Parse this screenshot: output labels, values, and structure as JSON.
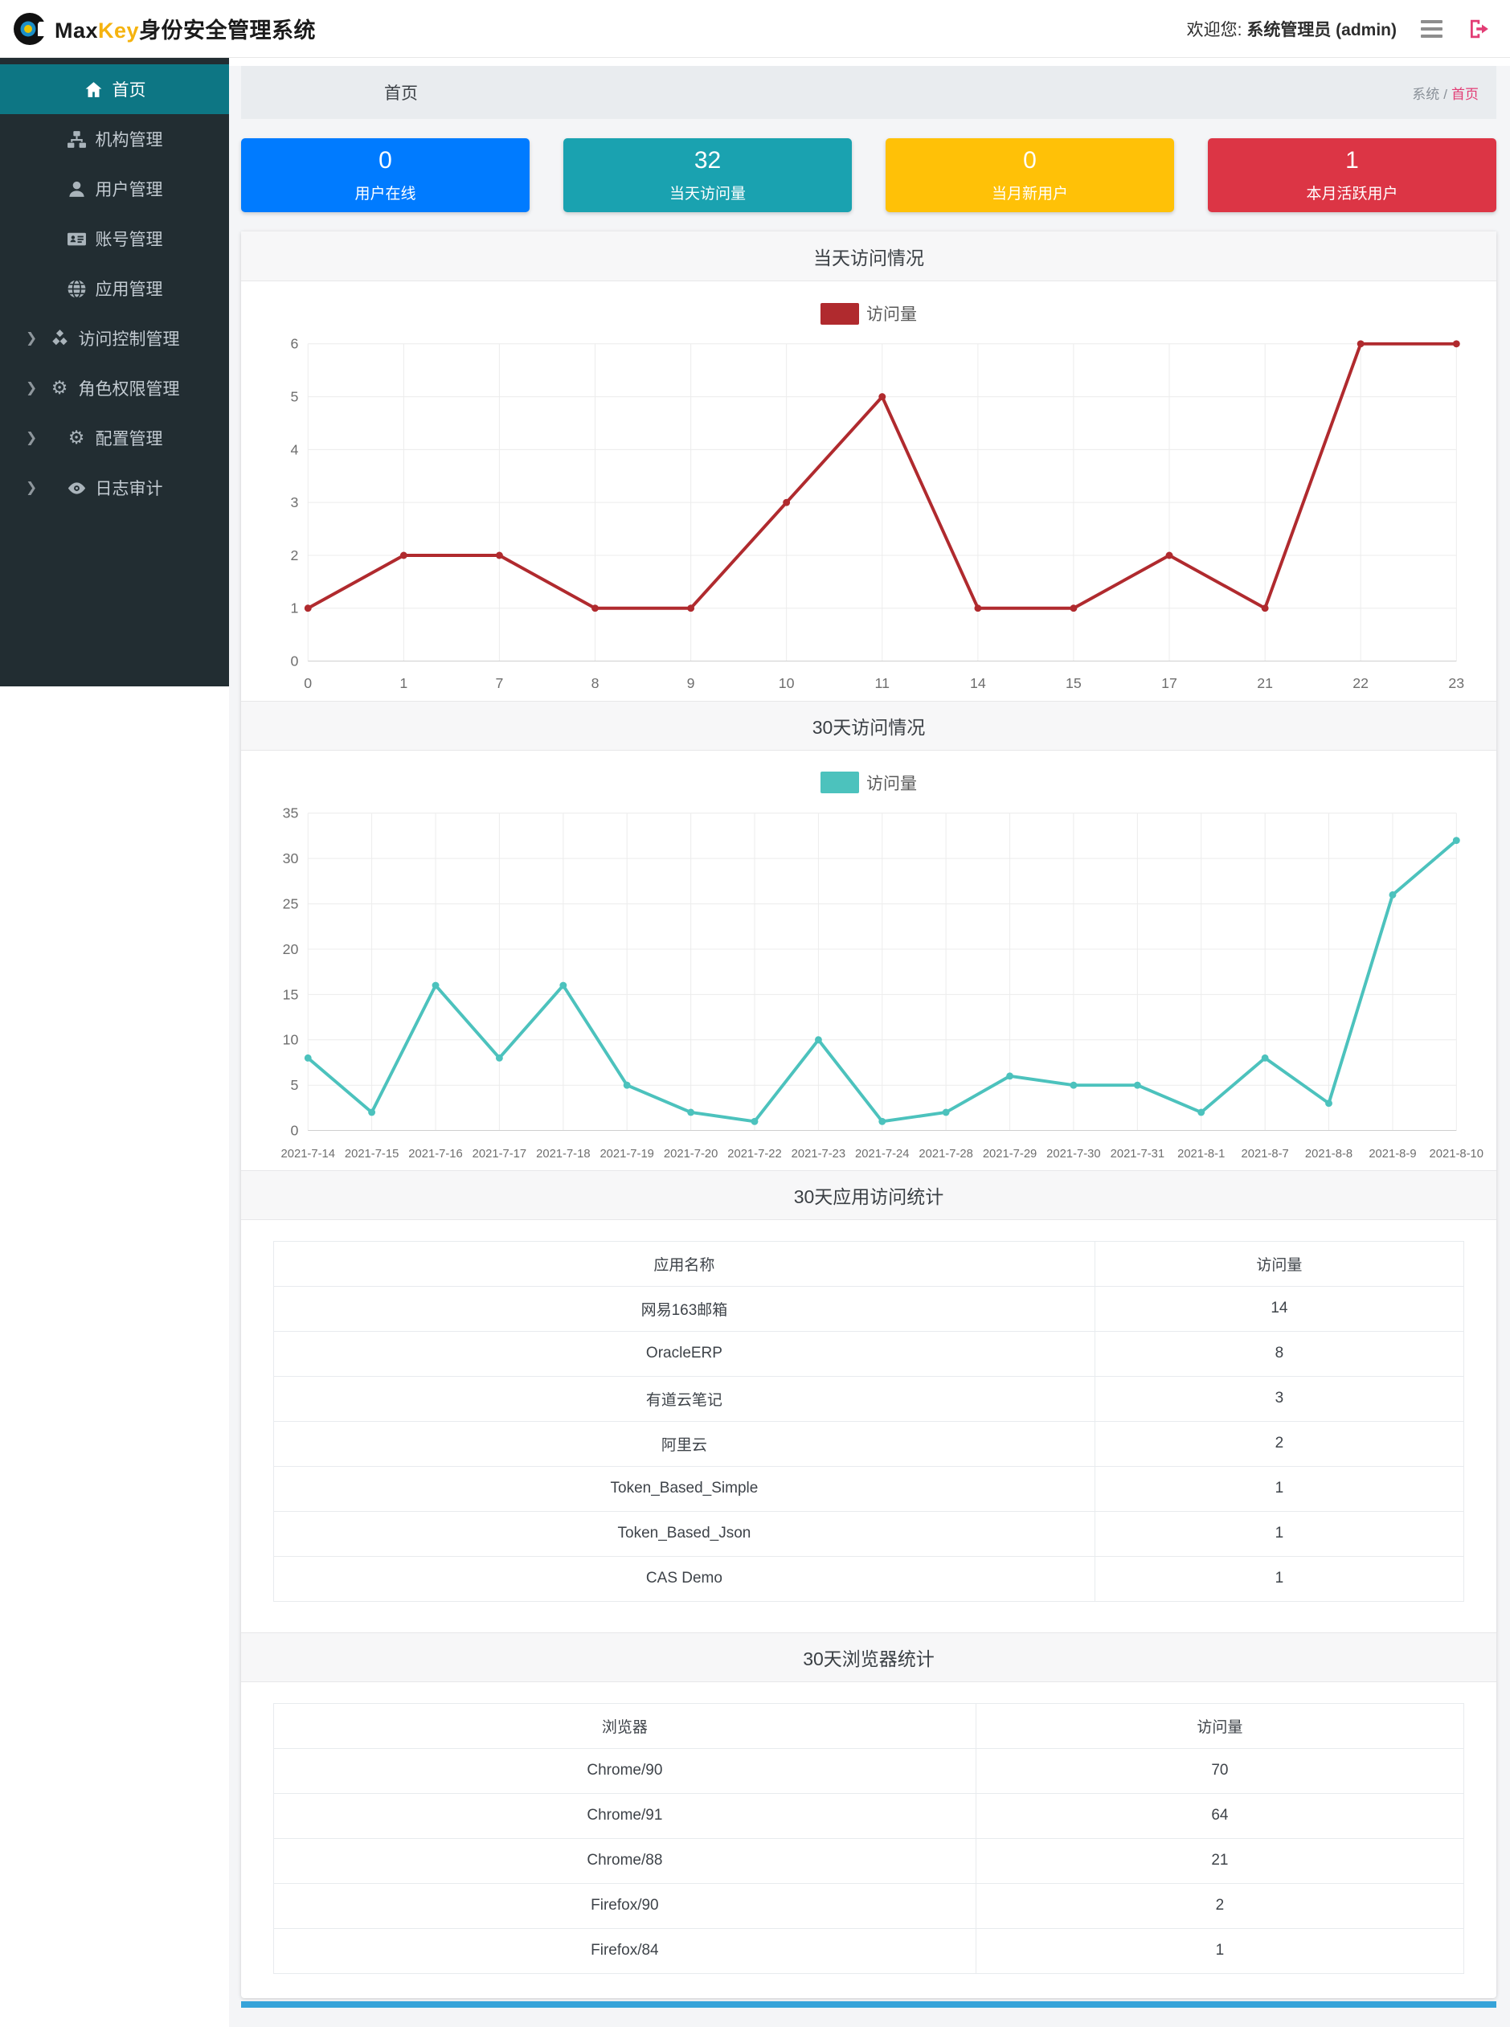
{
  "theme": {
    "sidebar_bg": "#222d32",
    "sidebar_active_bg": "#0d7684",
    "brand_key_color": "#f5b30f",
    "link_pink": "#e23c74",
    "page_bg": "#f4f5f7",
    "band_bg": "#f7f7f8",
    "footer_bar": "#36a3d9"
  },
  "header": {
    "brand_max": "Max",
    "brand_key": "Key",
    "brand_suffix": "身份安全管理系统",
    "welcome_prefix": "欢迎您:",
    "welcome_user": "系统管理员 (admin)"
  },
  "sidebar": {
    "items": [
      {
        "key": "home",
        "label": "首页",
        "icon": "home",
        "active": true,
        "expandable": false
      },
      {
        "key": "org-mgmt",
        "label": "机构管理",
        "icon": "sitemap",
        "active": false,
        "expandable": false
      },
      {
        "key": "user-mgmt",
        "label": "用户管理",
        "icon": "user",
        "active": false,
        "expandable": false
      },
      {
        "key": "account-mgmt",
        "label": "账号管理",
        "icon": "idcard",
        "active": false,
        "expandable": false
      },
      {
        "key": "app-mgmt",
        "label": "应用管理",
        "icon": "globe",
        "active": false,
        "expandable": false
      },
      {
        "key": "access-ctrl",
        "label": "访问控制管理",
        "icon": "cubes",
        "active": false,
        "expandable": true
      },
      {
        "key": "role-perm",
        "label": "角色权限管理",
        "icon": "gears",
        "active": false,
        "expandable": true
      },
      {
        "key": "config-mgmt",
        "label": "配置管理",
        "icon": "gears",
        "active": false,
        "expandable": true
      },
      {
        "key": "log-audit",
        "label": "日志审计",
        "icon": "eye",
        "active": false,
        "expandable": true
      }
    ]
  },
  "breadcrumb": {
    "page_title": "首页",
    "trail_root": "系统",
    "trail_sep": "/",
    "trail_current": "首页"
  },
  "stat_cards": [
    {
      "key": "users-online",
      "value": "0",
      "label": "用户在线",
      "color": "#007bff"
    },
    {
      "key": "today-visits",
      "value": "32",
      "label": "当天访问量",
      "color": "#1aa2b0"
    },
    {
      "key": "month-new-users",
      "value": "0",
      "label": "当月新用户",
      "color": "#ffc107"
    },
    {
      "key": "month-active-users",
      "value": "1",
      "label": "本月活跃用户",
      "color": "#dc3545"
    }
  ],
  "chart_data": [
    {
      "type": "line",
      "title": "当天访问情况",
      "legend": "访问量",
      "color": "#b02a2e",
      "categories": [
        "0",
        "1",
        "7",
        "8",
        "9",
        "10",
        "11",
        "14",
        "15",
        "17",
        "21",
        "22",
        "23"
      ],
      "values": [
        1,
        2,
        2,
        1,
        1,
        3,
        5,
        1,
        1,
        2,
        1,
        6,
        6
      ],
      "xlabel": "",
      "ylabel": "",
      "ylim": [
        0,
        6
      ],
      "ytick": 1,
      "yticks": [
        0,
        1,
        2,
        3,
        4,
        5,
        6
      ],
      "grid": true,
      "legend_position": "top",
      "x_font": 18
    },
    {
      "type": "line",
      "title": "30天访问情况",
      "legend": "访问量",
      "color": "#4cc2bd",
      "categories": [
        "2021-7-14",
        "2021-7-15",
        "2021-7-16",
        "2021-7-17",
        "2021-7-18",
        "2021-7-19",
        "2021-7-20",
        "2021-7-22",
        "2021-7-23",
        "2021-7-24",
        "2021-7-28",
        "2021-7-29",
        "2021-7-30",
        "2021-7-31",
        "2021-8-1",
        "2021-8-7",
        "2021-8-8",
        "2021-8-9",
        "2021-8-10"
      ],
      "values": [
        8,
        2,
        16,
        8,
        16,
        5,
        2,
        1,
        10,
        1,
        2,
        6,
        5,
        5,
        2,
        8,
        3,
        26,
        32
      ],
      "xlabel": "",
      "ylabel": "",
      "ylim": [
        0,
        35
      ],
      "ytick": 5,
      "yticks": [
        0,
        5,
        10,
        15,
        20,
        25,
        30,
        35
      ],
      "grid": true,
      "legend_position": "top",
      "x_font": 15
    }
  ],
  "app_table": {
    "title": "30天应用访问统计",
    "headers": [
      "应用名称",
      "访问量"
    ],
    "rows": [
      [
        "网易163邮箱",
        "14"
      ],
      [
        "OracleERP",
        "8"
      ],
      [
        "有道云笔记",
        "3"
      ],
      [
        "阿里云",
        "2"
      ],
      [
        "Token_Based_Simple",
        "1"
      ],
      [
        "Token_Based_Json",
        "1"
      ],
      [
        "CAS Demo",
        "1"
      ]
    ]
  },
  "browser_table": {
    "title": "30天浏览器统计",
    "headers": [
      "浏览器",
      "访问量"
    ],
    "rows": [
      [
        "Chrome/90",
        "70"
      ],
      [
        "Chrome/91",
        "64"
      ],
      [
        "Chrome/88",
        "21"
      ],
      [
        "Firefox/90",
        "2"
      ],
      [
        "Firefox/84",
        "1"
      ]
    ]
  }
}
